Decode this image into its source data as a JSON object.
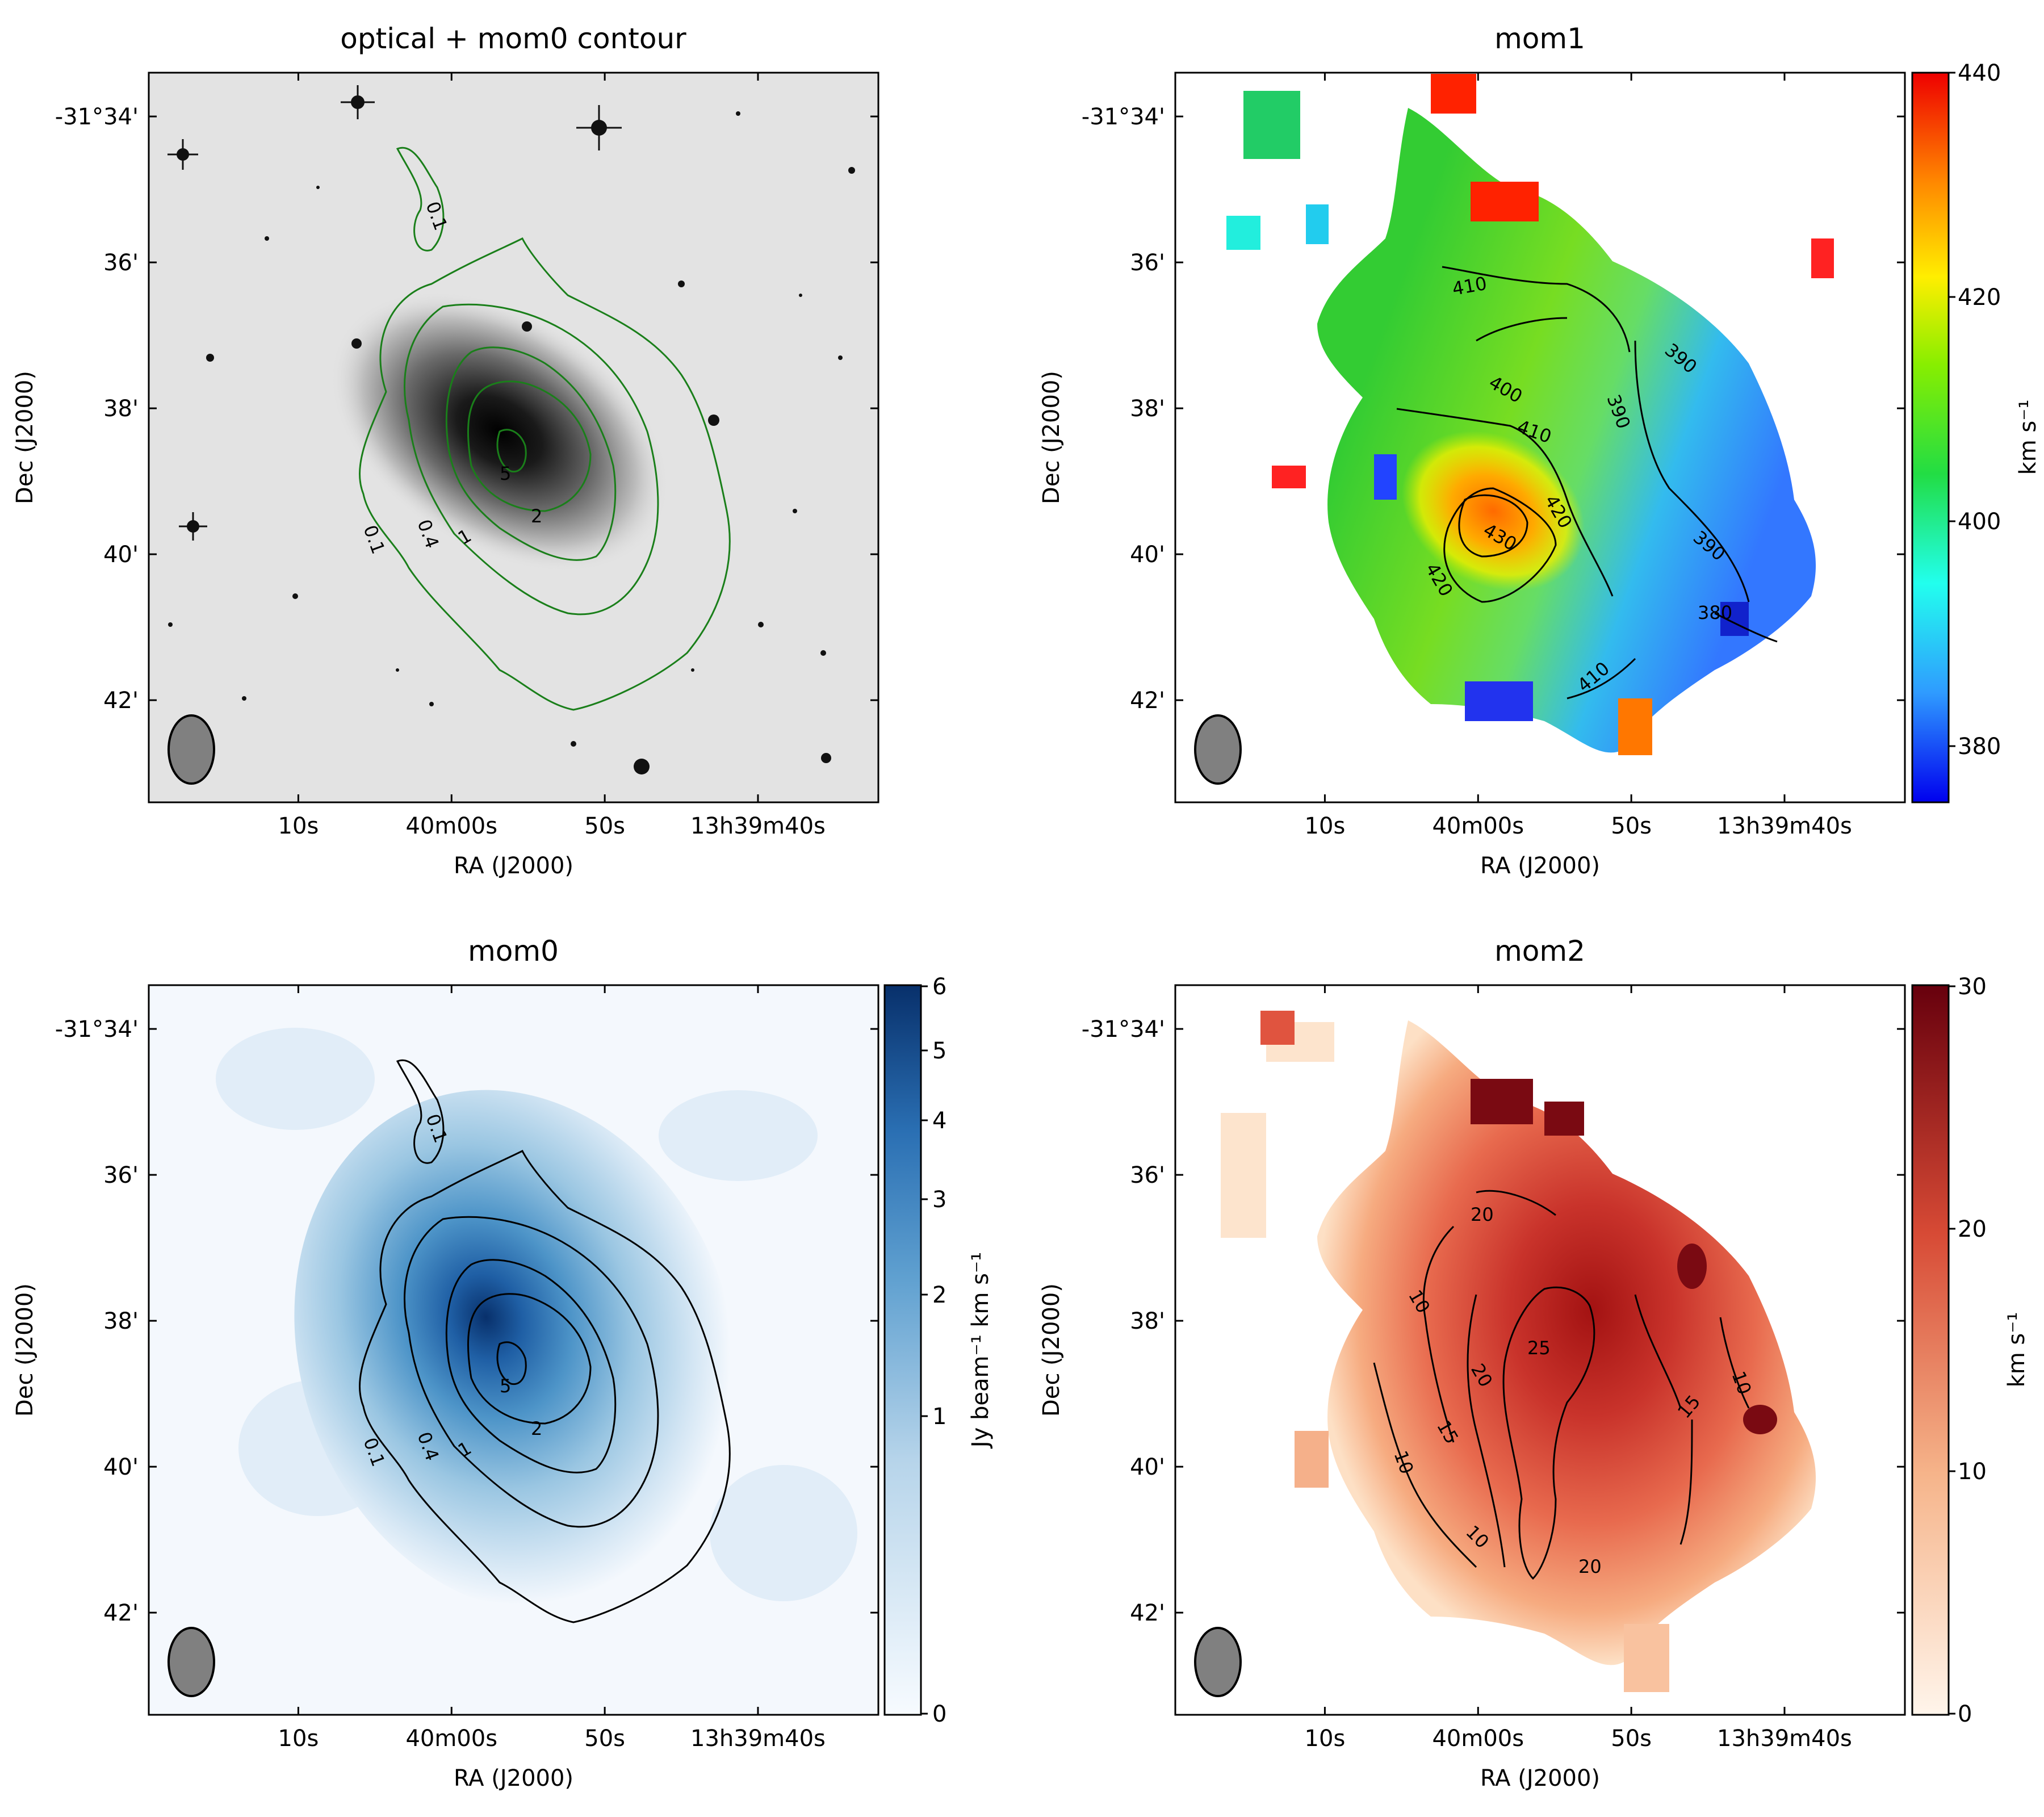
{
  "figure": {
    "panels": {
      "optical": {
        "title": "optical + mom0 contour"
      },
      "mom1": {
        "title": "mom1"
      },
      "mom0": {
        "title": "mom0"
      },
      "mom2": {
        "title": "mom2"
      }
    },
    "xlabel": "RA (J2000)",
    "ylabel": "Dec (J2000)",
    "x_ticks": [
      "10s",
      "40m00s",
      "50s",
      "13h39m40s"
    ],
    "y_ticks": [
      "-31°34'",
      "36'",
      "38'",
      "40'",
      "42'"
    ],
    "colorbars": {
      "mom1": {
        "label": "km s⁻¹",
        "ticks": [
          "440",
          "420",
          "400",
          "380"
        ],
        "range": [
          375,
          440
        ]
      },
      "mom0": {
        "label": "Jy beam⁻¹ km s⁻¹",
        "ticks": [
          "6",
          "5",
          "4",
          "3",
          "2",
          "1",
          "0"
        ],
        "range": [
          0,
          6
        ]
      },
      "mom2": {
        "label": "km s⁻¹",
        "ticks": [
          "30",
          "20",
          "10",
          "0"
        ],
        "range": [
          0,
          30
        ]
      }
    },
    "colors": {
      "contour_green": "#1a7f1a",
      "contour_black": "#000000",
      "beam": "#808080"
    }
  },
  "chart_data": [
    {
      "type": "heatmap",
      "title": "optical + mom0 contour",
      "xlabel": "RA (J2000)",
      "ylabel": "Dec (J2000)",
      "contour_levels": [
        0.1,
        0.4,
        1,
        2,
        5
      ],
      "contour_labels": [
        "0.1",
        "0.1",
        "0.4",
        "1",
        "2",
        "5"
      ]
    },
    {
      "type": "heatmap",
      "title": "mom1",
      "xlabel": "RA (J2000)",
      "ylabel": "Dec (J2000)",
      "units": "km s⁻¹",
      "range": [
        375,
        440
      ],
      "contour_levels": [
        380,
        390,
        400,
        410,
        420,
        430
      ],
      "contour_labels": [
        "410",
        "400",
        "410",
        "420",
        "430",
        "420",
        "390",
        "390",
        "390",
        "380",
        "410"
      ]
    },
    {
      "type": "heatmap",
      "title": "mom0",
      "xlabel": "RA (J2000)",
      "ylabel": "Dec (J2000)",
      "units": "Jy beam⁻¹ km s⁻¹",
      "range": [
        0,
        6
      ],
      "contour_levels": [
        0.1,
        0.4,
        1,
        2,
        5
      ],
      "contour_labels": [
        "0.1",
        "0.1",
        "0.4",
        "1",
        "2",
        "5"
      ]
    },
    {
      "type": "heatmap",
      "title": "mom2",
      "xlabel": "RA (J2000)",
      "ylabel": "Dec (J2000)",
      "units": "km s⁻¹",
      "range": [
        0,
        30
      ],
      "contour_levels": [
        10,
        15,
        20,
        25
      ],
      "contour_labels": [
        "20",
        "10",
        "25",
        "20",
        "15",
        "10",
        "15",
        "10",
        "10",
        "20"
      ]
    }
  ]
}
